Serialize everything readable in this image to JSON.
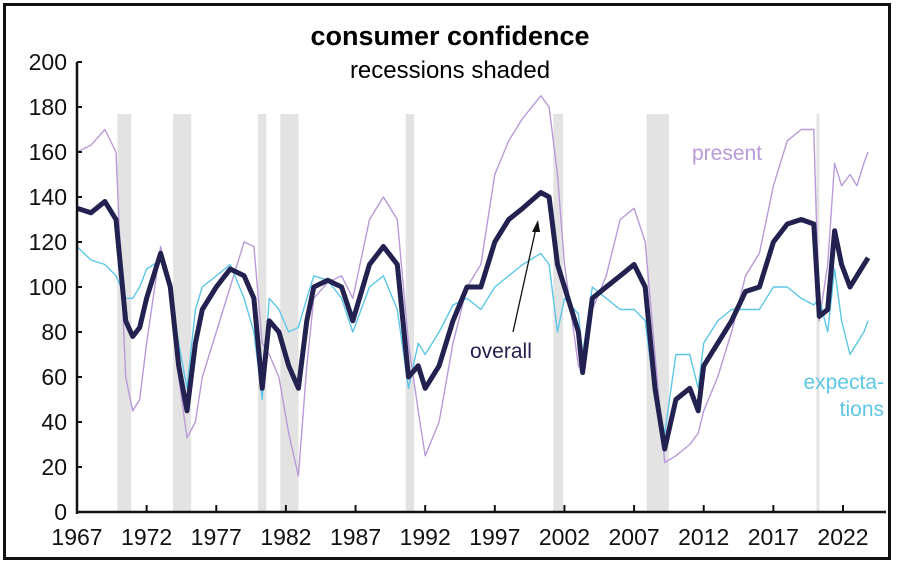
{
  "chart_data": {
    "type": "line",
    "title": "consumer confidence",
    "subtitle": "recessions shaded",
    "xlabel": "",
    "ylabel": "",
    "xlim": [
      1967,
      2024
    ],
    "ylim": [
      0,
      200
    ],
    "yticks": [
      0,
      20,
      40,
      60,
      80,
      100,
      120,
      140,
      160,
      180,
      200
    ],
    "xticks": [
      1967,
      1972,
      1977,
      1982,
      1987,
      1992,
      1997,
      2002,
      2007,
      2012,
      2017,
      2022
    ],
    "recessions": [
      [
        1969.9,
        1970.9
      ],
      [
        1973.9,
        1975.2
      ],
      [
        1980.0,
        1980.6
      ],
      [
        1981.6,
        1982.9
      ],
      [
        1990.6,
        1991.2
      ],
      [
        2001.2,
        2001.9
      ],
      [
        2007.9,
        2009.5
      ],
      [
        2020.1,
        2020.3
      ]
    ],
    "x": [
      1967,
      1968,
      1969,
      1969.8,
      1970.5,
      1971,
      1971.5,
      1972,
      1973,
      1973.7,
      1974.3,
      1974.9,
      1975.5,
      1976,
      1977,
      1978,
      1979,
      1979.7,
      1980.3,
      1980.8,
      1981.5,
      1982.2,
      1982.9,
      1983.5,
      1984,
      1985,
      1986,
      1986.8,
      1988,
      1989,
      1990,
      1990.8,
      1991.5,
      1992,
      1993,
      1994,
      1995,
      1996,
      1997,
      1998,
      1999,
      2000.3,
      2000.9,
      2001.5,
      2002,
      2003,
      2003.3,
      2004,
      2005,
      2006,
      2007,
      2007.8,
      2008.5,
      2009.2,
      2010,
      2011,
      2011.6,
      2012,
      2013,
      2014,
      2015,
      2016,
      2017,
      2018,
      2019,
      2019.9,
      2020.3,
      2020.9,
      2021.4,
      2021.9,
      2022.5,
      2023,
      2023.5,
      2023.8
    ],
    "series": [
      {
        "name": "present",
        "color": "#b99ad8",
        "values": [
          160,
          163,
          170,
          160,
          60,
          45,
          50,
          75,
          118,
          100,
          60,
          33,
          40,
          60,
          80,
          100,
          120,
          118,
          75,
          70,
          60,
          35,
          16,
          65,
          95,
          102,
          105,
          95,
          130,
          140,
          130,
          75,
          45,
          25,
          40,
          75,
          100,
          110,
          150,
          165,
          175,
          185,
          180,
          150,
          110,
          65,
          62,
          90,
          105,
          130,
          135,
          120,
          70,
          22,
          25,
          30,
          35,
          45,
          60,
          80,
          105,
          115,
          145,
          165,
          170,
          170,
          85,
          110,
          155,
          145,
          150,
          145,
          155,
          160
        ]
      },
      {
        "name": "expectations",
        "color": "#5ec7e6",
        "values": [
          118,
          112,
          110,
          105,
          95,
          95,
          100,
          108,
          112,
          98,
          75,
          55,
          90,
          100,
          105,
          110,
          95,
          80,
          50,
          95,
          90,
          80,
          82,
          95,
          105,
          103,
          95,
          80,
          100,
          105,
          90,
          55,
          75,
          70,
          80,
          92,
          95,
          90,
          100,
          105,
          110,
          115,
          110,
          80,
          95,
          88,
          70,
          100,
          95,
          90,
          90,
          85,
          50,
          35,
          70,
          70,
          55,
          75,
          85,
          90,
          90,
          90,
          100,
          100,
          95,
          92,
          95,
          80,
          108,
          85,
          70,
          75,
          80,
          85
        ]
      },
      {
        "name": "overall",
        "color": "#23214f",
        "values": [
          135,
          133,
          138,
          130,
          85,
          78,
          82,
          95,
          115,
          100,
          65,
          45,
          75,
          90,
          100,
          108,
          105,
          95,
          55,
          85,
          80,
          65,
          55,
          85,
          100,
          103,
          100,
          85,
          110,
          118,
          110,
          60,
          65,
          55,
          65,
          85,
          100,
          100,
          120,
          130,
          135,
          142,
          140,
          110,
          100,
          80,
          62,
          95,
          100,
          105,
          110,
          100,
          55,
          28,
          50,
          55,
          45,
          65,
          75,
          85,
          98,
          100,
          120,
          128,
          130,
          128,
          87,
          90,
          125,
          110,
          100,
          105,
          110,
          113
        ]
      }
    ],
    "annotations": {
      "present": "present",
      "overall": "overall",
      "expectations_1": "expecta-",
      "expectations_2": "tions"
    }
  }
}
